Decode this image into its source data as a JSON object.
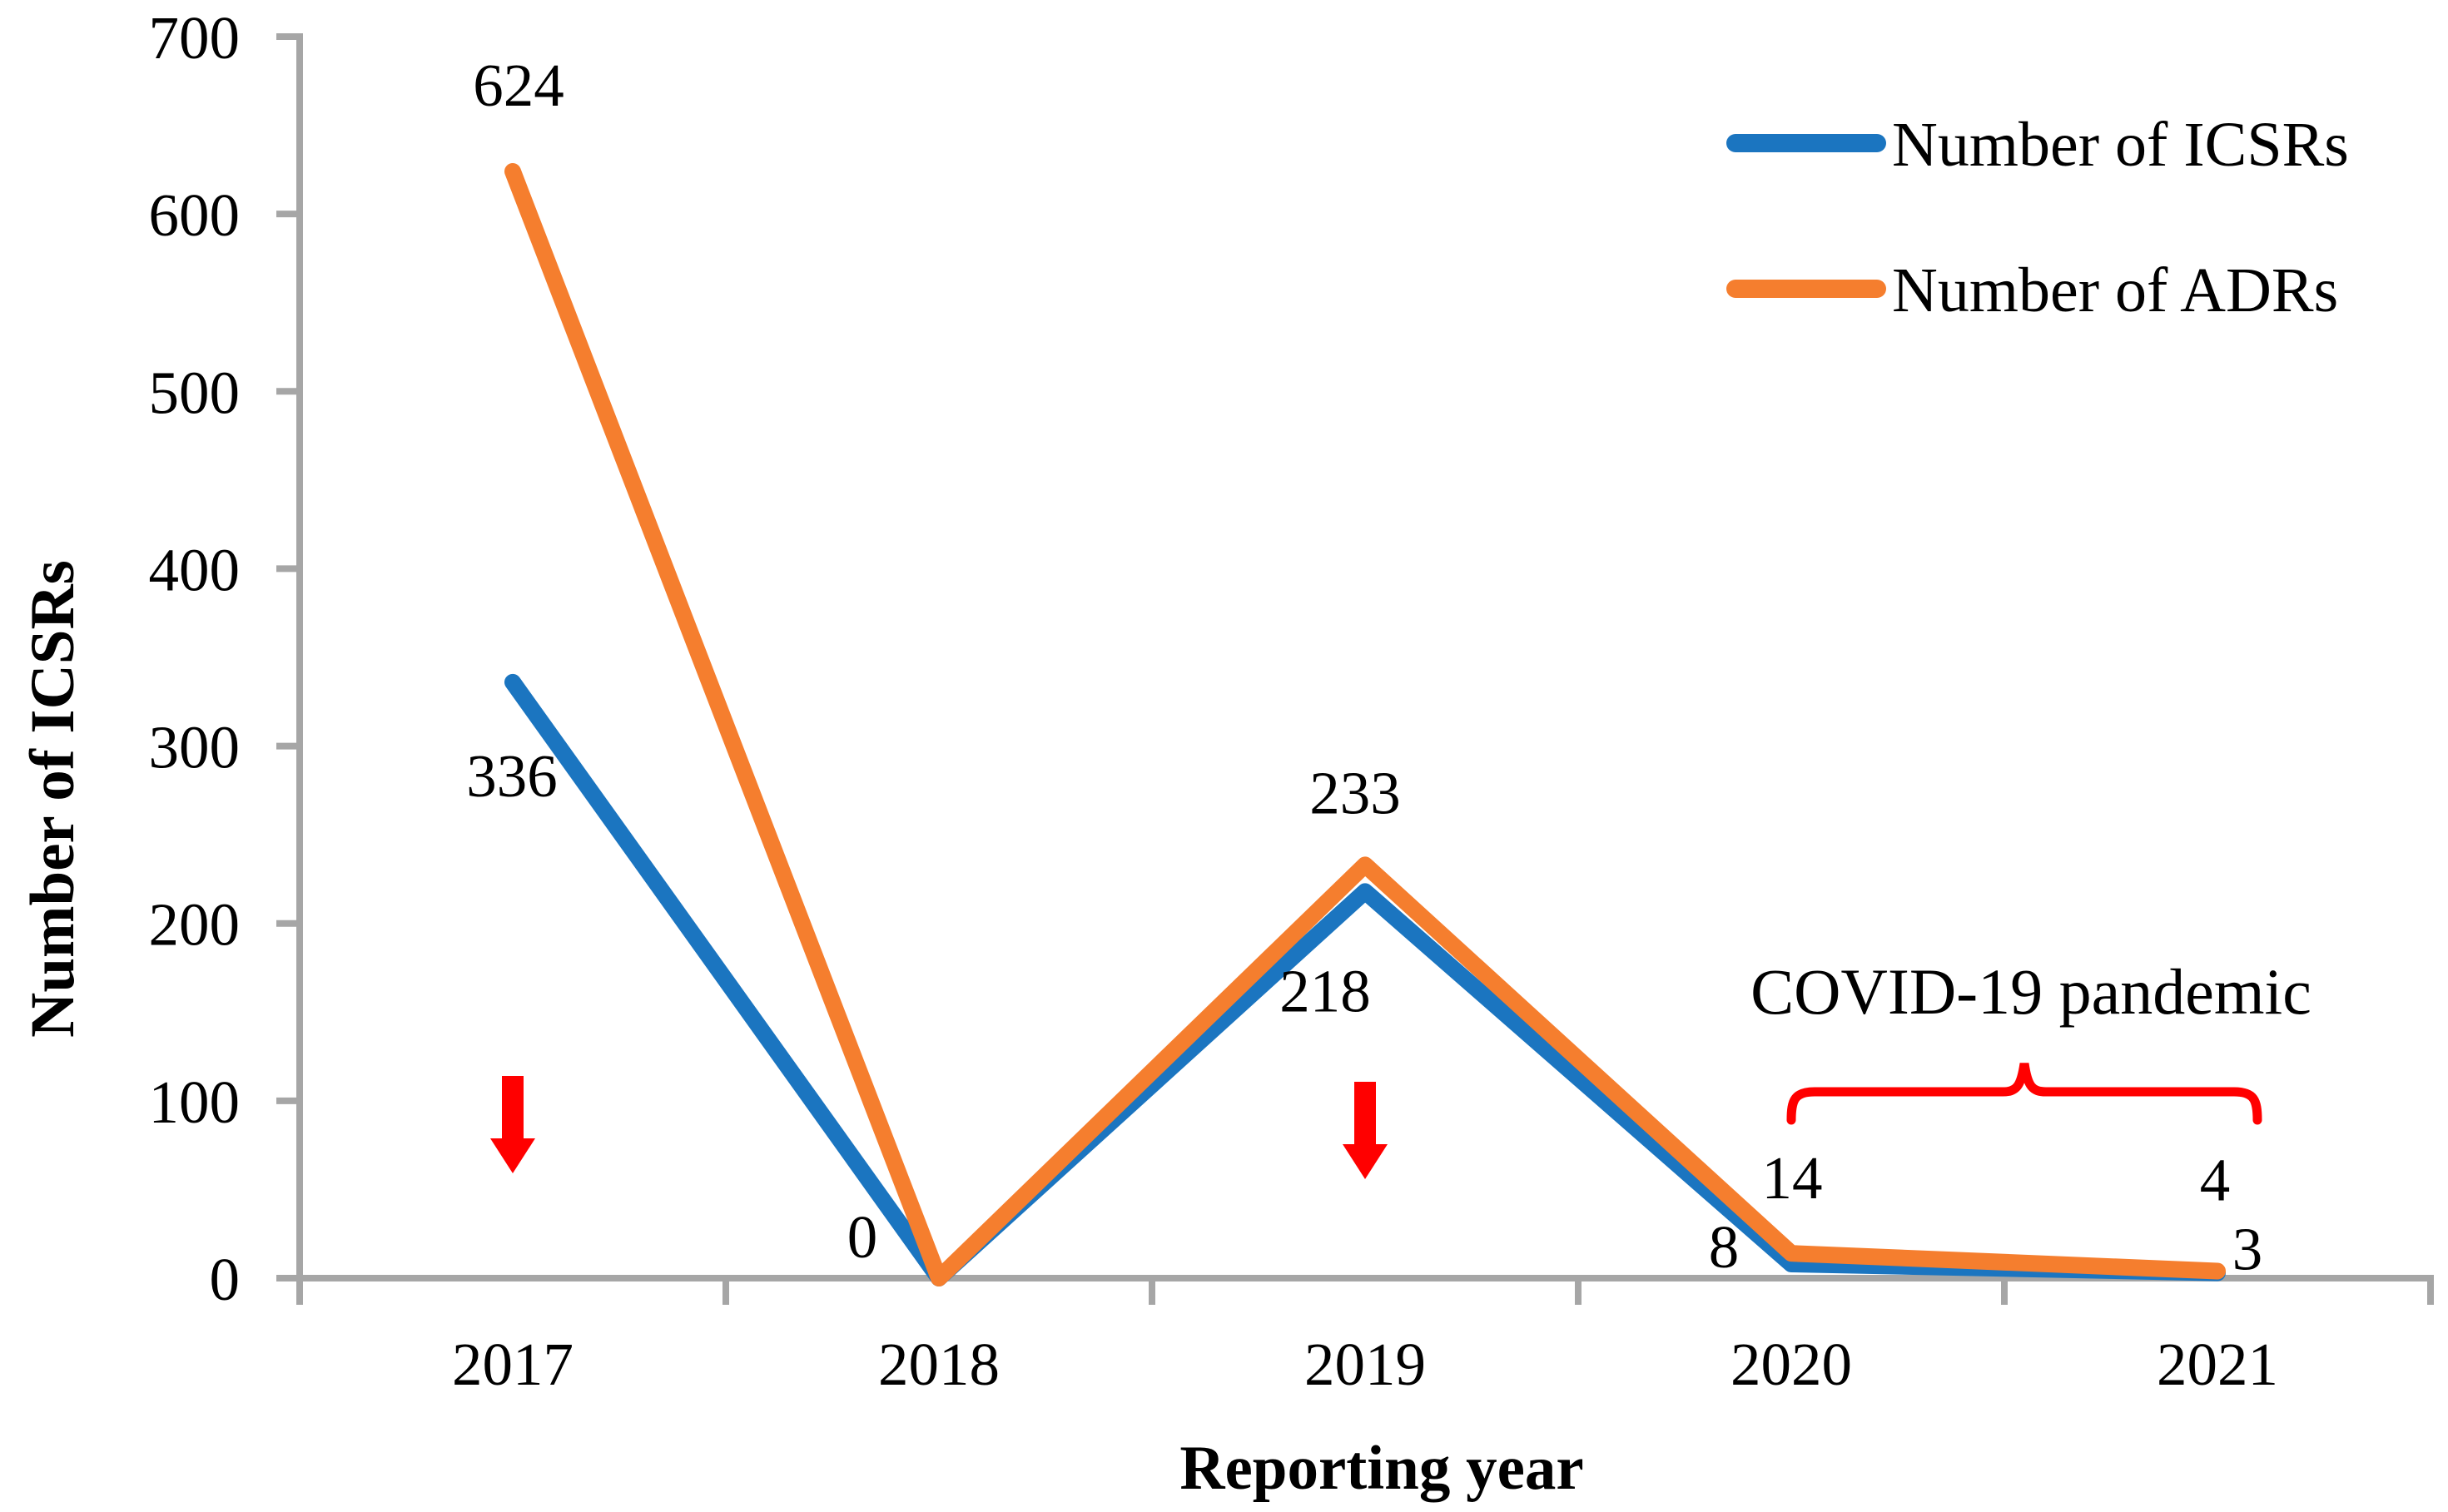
{
  "chart_data": {
    "type": "line",
    "title": "",
    "categories": [
      "2017",
      "2018",
      "2019",
      "2020",
      "2021"
    ],
    "series": [
      {
        "name": "Number of ICSRs",
        "color": "#1B75C0",
        "values": [
          336,
          0,
          218,
          8,
          3
        ],
        "data_labels": [
          "336",
          "0",
          "218",
          "8",
          "3"
        ]
      },
      {
        "name": "Number of ADRs",
        "color": "#F57E2E",
        "values": [
          624,
          0,
          233,
          14,
          4
        ],
        "data_labels": [
          "624",
          null,
          "233",
          "14",
          "4"
        ]
      }
    ],
    "xlabel": "Reporting year",
    "ylabel": "Number of ICSRs",
    "ylim": [
      0,
      700
    ],
    "ytick_step": 100,
    "yticks": [
      "0",
      "100",
      "200",
      "300",
      "400",
      "500",
      "600",
      "700"
    ],
    "grid": false,
    "legend_position": "top-right",
    "axis_color": "#A6A6A6",
    "text_color": "#000000",
    "annotations": {
      "covid_label": "COVID-19 pandemic",
      "covid_span": [
        "2020",
        "2021"
      ],
      "brace_color": "#FF0000",
      "arrow_color": "#FF0000",
      "arrow_categories": [
        "2017",
        "2019"
      ]
    }
  }
}
